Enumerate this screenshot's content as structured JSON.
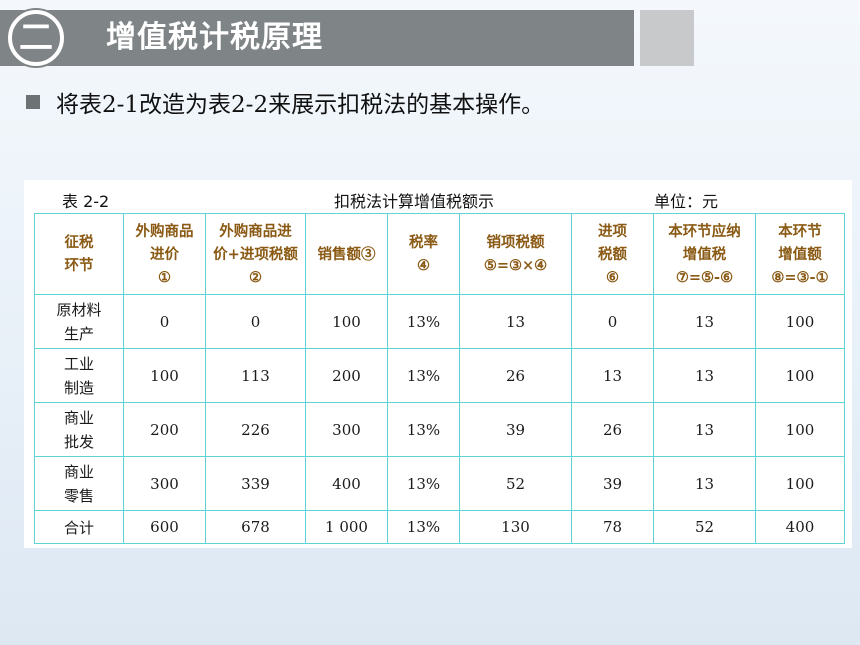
{
  "header": {
    "number_glyph": "二",
    "title": "增值税计税原理"
  },
  "bullet": {
    "text": "将表2-1改造为表2-2来展示扣税法的基本操作。"
  },
  "table": {
    "label": "表 2-2",
    "caption": "扣税法计算增值税额示",
    "unit": "单位：元",
    "headers": [
      [
        "征税",
        "环节"
      ],
      [
        "外购商品",
        "进价",
        "①"
      ],
      [
        "外购商品进",
        "价+进项税额",
        "②"
      ],
      [
        "销售额③"
      ],
      [
        "税率",
        "④"
      ],
      [
        "销项税额",
        "⑤=③×④"
      ],
      [
        "进项",
        "税额",
        "⑥"
      ],
      [
        "本环节应纳",
        "增值税",
        "⑦=⑤-⑥"
      ],
      [
        "本环节",
        "增值额",
        "⑧=③-①"
      ]
    ],
    "rows": [
      {
        "stage": [
          "原材料",
          "生产"
        ],
        "values": [
          "0",
          "0",
          "100",
          "13%",
          "13",
          "0",
          "13",
          "100"
        ]
      },
      {
        "stage": [
          "工业",
          "制造"
        ],
        "values": [
          "100",
          "113",
          "200",
          "13%",
          "26",
          "13",
          "13",
          "100"
        ]
      },
      {
        "stage": [
          "商业",
          "批发"
        ],
        "values": [
          "200",
          "226",
          "300",
          "13%",
          "39",
          "26",
          "13",
          "100"
        ]
      },
      {
        "stage": [
          "商业",
          "零售"
        ],
        "values": [
          "300",
          "339",
          "400",
          "13%",
          "52",
          "39",
          "13",
          "100"
        ]
      }
    ],
    "total": {
      "stage": "合计",
      "values": [
        "600",
        "678",
        "1 000",
        "13%",
        "130",
        "78",
        "52",
        "400"
      ]
    }
  }
}
